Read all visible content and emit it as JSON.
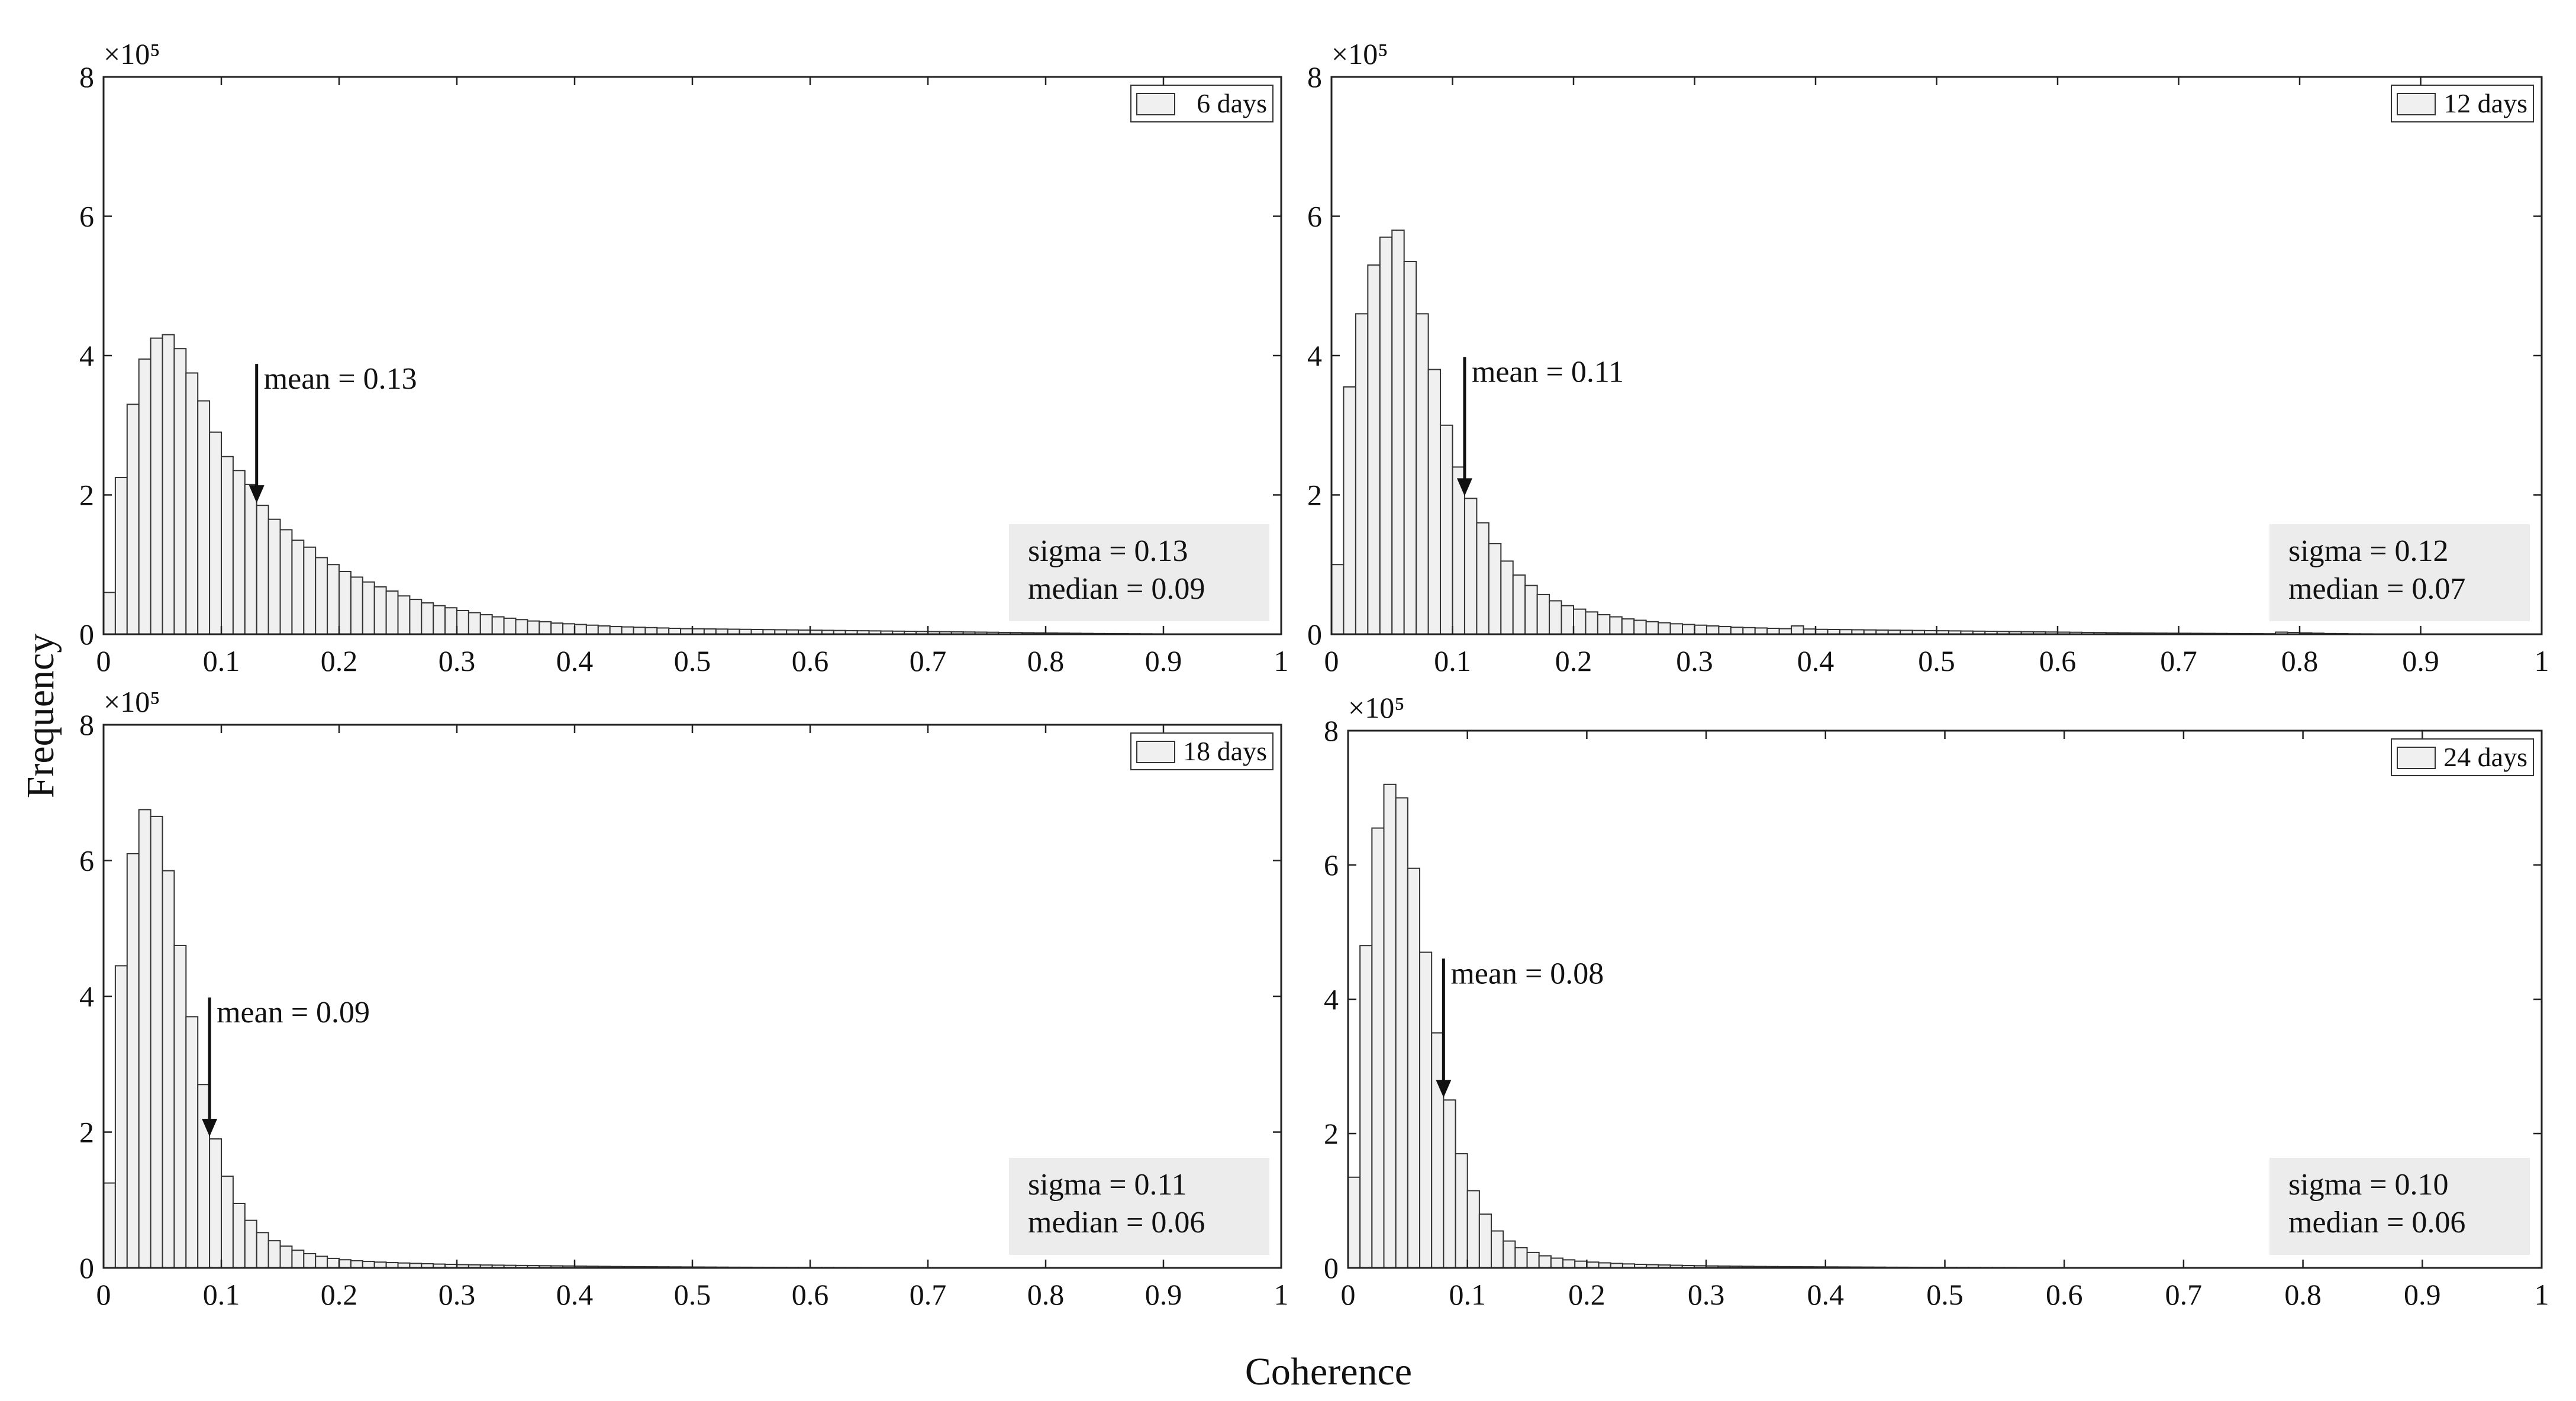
{
  "figure": {
    "xlabel": "Coherence",
    "ylabel": "Frequency"
  },
  "chart_data": [
    {
      "type": "histogram",
      "legend": "6 days",
      "legend_position": "top-right",
      "y_scale_label": "×10⁵",
      "xlim": [
        0,
        1
      ],
      "ylim": [
        0,
        800000
      ],
      "x_ticks": [
        "0",
        "0.1",
        "0.2",
        "0.3",
        "0.4",
        "0.5",
        "0.6",
        "0.7",
        "0.8",
        "0.9",
        "1"
      ],
      "y_ticks": [
        "0",
        "2",
        "4",
        "6",
        "8"
      ],
      "bin_width": 0.01,
      "bin_start": 0,
      "values": [
        60000,
        225000,
        330000,
        395000,
        425000,
        430000,
        410000,
        375000,
        335000,
        290000,
        255000,
        235000,
        215000,
        185000,
        165000,
        150000,
        135000,
        125000,
        110000,
        100000,
        90000,
        82000,
        75000,
        68000,
        62000,
        55000,
        50000,
        45000,
        41000,
        38000,
        34000,
        31000,
        28000,
        25000,
        23000,
        21000,
        19000,
        18000,
        16000,
        15000,
        14000,
        13000,
        12000,
        11000,
        10500,
        10000,
        9500,
        9000,
        8500,
        8000,
        7800,
        7600,
        7400,
        7200,
        7000,
        6800,
        6600,
        6400,
        6200,
        6000,
        5800,
        5600,
        5400,
        5200,
        5000,
        4800,
        4600,
        4400,
        4200,
        4000,
        3800,
        3600,
        3400,
        3200,
        3000,
        2800,
        2600,
        2400,
        2200,
        2000,
        1800,
        1600,
        1400,
        1200,
        1000,
        900,
        800,
        700,
        600,
        500,
        400,
        300,
        200,
        100,
        100,
        0,
        0,
        0,
        0,
        0
      ],
      "mean_label": "mean = 0.13",
      "mean_value": 0.13,
      "stats": [
        "sigma = 0.13",
        "median = 0.09"
      ],
      "bar_fill": "#f0f0f0",
      "bar_stroke": "#333333"
    },
    {
      "type": "histogram",
      "legend": "12 days",
      "legend_position": "top-right",
      "y_scale_label": "×10⁵",
      "xlim": [
        0,
        1
      ],
      "ylim": [
        0,
        800000
      ],
      "x_ticks": [
        "0",
        "0.1",
        "0.2",
        "0.3",
        "0.4",
        "0.5",
        "0.6",
        "0.7",
        "0.8",
        "0.9",
        "1"
      ],
      "y_ticks": [
        "0",
        "2",
        "4",
        "6",
        "8"
      ],
      "bin_width": 0.01,
      "bin_start": 0,
      "values": [
        100000,
        355000,
        460000,
        530000,
        570000,
        580000,
        535000,
        460000,
        380000,
        300000,
        240000,
        195000,
        160000,
        130000,
        105000,
        85000,
        70000,
        57000,
        48000,
        41000,
        36000,
        32000,
        28000,
        25000,
        22000,
        20000,
        18000,
        16500,
        15000,
        14000,
        13000,
        12000,
        11000,
        10000,
        9500,
        9000,
        8500,
        8000,
        12000,
        7500,
        7000,
        6800,
        6600,
        6400,
        6200,
        6000,
        5800,
        5600,
        5400,
        5200,
        5000,
        4800,
        4600,
        4400,
        4200,
        4000,
        3800,
        3600,
        3400,
        3200,
        3000,
        2800,
        2600,
        2400,
        2200,
        2000,
        1800,
        1700,
        1600,
        1500,
        1400,
        1300,
        1200,
        1100,
        1000,
        900,
        800,
        700,
        3000,
        2500,
        2000,
        1500,
        1000,
        800,
        600,
        500,
        400,
        300,
        200,
        150,
        100,
        80,
        60,
        40,
        20,
        0,
        0,
        0,
        0,
        0
      ],
      "mean_label": "mean = 0.11",
      "mean_value": 0.11,
      "stats": [
        "sigma = 0.12",
        "median = 0.07"
      ],
      "bar_fill": "#f0f0f0",
      "bar_stroke": "#333333"
    },
    {
      "type": "histogram",
      "legend": "18 days",
      "legend_position": "top-right",
      "y_scale_label": "×10⁵",
      "xlim": [
        0,
        1
      ],
      "ylim": [
        0,
        800000
      ],
      "x_ticks": [
        "0",
        "0.1",
        "0.2",
        "0.3",
        "0.4",
        "0.5",
        "0.6",
        "0.7",
        "0.8",
        "0.9",
        "1"
      ],
      "y_ticks": [
        "0",
        "2",
        "4",
        "6",
        "8"
      ],
      "bin_width": 0.01,
      "bin_start": 0,
      "values": [
        125000,
        445000,
        610000,
        675000,
        665000,
        585000,
        475000,
        370000,
        270000,
        190000,
        135000,
        95000,
        70000,
        52000,
        40000,
        32000,
        26000,
        21000,
        17000,
        14000,
        12000,
        10500,
        9500,
        8500,
        7800,
        7200,
        6600,
        6100,
        5600,
        5200,
        4800,
        4500,
        4200,
        4000,
        3800,
        3600,
        3400,
        3200,
        3000,
        2800,
        2600,
        2400,
        2200,
        2000,
        1900,
        1800,
        1700,
        1600,
        1500,
        1400,
        1300,
        1200,
        1100,
        1000,
        950,
        900,
        850,
        800,
        750,
        700,
        650,
        600,
        550,
        500,
        450,
        400,
        350,
        300,
        280,
        260,
        240,
        220,
        200,
        180,
        160,
        140,
        120,
        100,
        90,
        80,
        70,
        60,
        50,
        40,
        30,
        20,
        10,
        5,
        0,
        0,
        0,
        0,
        0,
        0,
        0,
        0,
        0,
        0,
        0,
        0
      ],
      "mean_label": "mean = 0.09",
      "mean_value": 0.09,
      "stats": [
        "sigma = 0.11",
        "median = 0.06"
      ],
      "bar_fill": "#f0f0f0",
      "bar_stroke": "#333333"
    },
    {
      "type": "histogram",
      "legend": "24 days",
      "legend_position": "top-right",
      "y_scale_label": "×10⁵",
      "xlim": [
        0,
        1
      ],
      "ylim": [
        0,
        800000
      ],
      "x_ticks": [
        "0",
        "0.1",
        "0.2",
        "0.3",
        "0.4",
        "0.5",
        "0.6",
        "0.7",
        "0.8",
        "0.9",
        "1"
      ],
      "y_ticks": [
        "0",
        "2",
        "4",
        "6",
        "8"
      ],
      "bin_width": 0.01,
      "bin_start": 0,
      "values": [
        135000,
        480000,
        655000,
        720000,
        700000,
        595000,
        470000,
        350000,
        250000,
        170000,
        115000,
        80000,
        55000,
        40000,
        30000,
        23000,
        18000,
        14500,
        12000,
        10000,
        8600,
        7500,
        6600,
        5900,
        5300,
        4800,
        4300,
        3900,
        3500,
        3200,
        2900,
        2700,
        2500,
        2300,
        2100,
        2000,
        1900,
        1800,
        1700,
        1600,
        1500,
        1400,
        1300,
        1200,
        1100,
        1000,
        950,
        900,
        850,
        800,
        750,
        700,
        650,
        600,
        550,
        500,
        450,
        400,
        350,
        300,
        280,
        260,
        240,
        220,
        200,
        180,
        160,
        140,
        120,
        100,
        90,
        80,
        70,
        60,
        50,
        40,
        30,
        20,
        10,
        5,
        0,
        0,
        0,
        0,
        0,
        0,
        0,
        0,
        0,
        0,
        0,
        0,
        0,
        0,
        0,
        0,
        0,
        0,
        0,
        0
      ],
      "mean_label": "mean = 0.08",
      "mean_value": 0.08,
      "stats": [
        "sigma = 0.10",
        "median = 0.06"
      ],
      "bar_fill": "#f0f0f0",
      "bar_stroke": "#333333"
    }
  ]
}
